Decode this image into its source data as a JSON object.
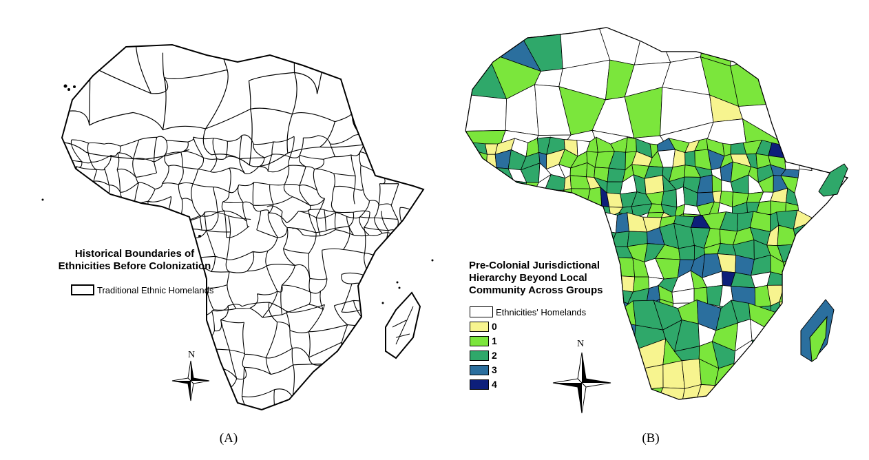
{
  "panel_a": {
    "legend_title_line1": "Historical Boundaries of",
    "legend_title_line2": "Ethnicities Before Colonization",
    "legend_item": "Traditional Ethnic Homelands",
    "north_label": "N",
    "caption": "(A)"
  },
  "panel_b": {
    "legend_title_line1": "Pre-Colonial Jurisdictional",
    "legend_title_line2": "Hierarchy Beyond Local",
    "legend_title_line3": "Community Across Groups",
    "legend_items": [
      {
        "label": "Ethnicities' Homelands",
        "color": "#ffffff"
      },
      {
        "label": "0",
        "color": "#f7f48f"
      },
      {
        "label": "1",
        "color": "#7be63c"
      },
      {
        "label": "2",
        "color": "#2fa86a"
      },
      {
        "label": "3",
        "color": "#2b6f9e"
      },
      {
        "label": "4",
        "color": "#0d1f7a"
      }
    ],
    "north_label": "N",
    "caption": "(B)"
  },
  "icons": [
    "compass-rose-icon"
  ]
}
